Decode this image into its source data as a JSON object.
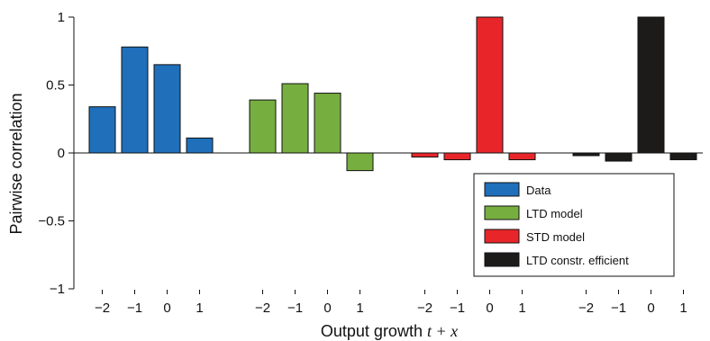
{
  "chart_data": {
    "type": "bar",
    "title": "",
    "xlabel": "Output growth t + x",
    "xlabel_plain": "Output growth ",
    "xlabel_math": "t + x",
    "ylabel": "Pairwise correlation",
    "ylim": [
      -1,
      1
    ],
    "yticks": [
      -1,
      -0.5,
      0,
      0.5,
      1
    ],
    "ytick_labels": [
      "−1",
      "−0.5",
      "0",
      "0.5",
      "1"
    ],
    "lags": [
      -2,
      -1,
      0,
      1
    ],
    "lag_labels": [
      "−2",
      "−1",
      "0",
      "1"
    ],
    "grid": false,
    "legend_position": "bottom-right",
    "series": [
      {
        "name": "Data",
        "color": "#1f6fba",
        "values": [
          0.34,
          0.78,
          0.65,
          0.11
        ]
      },
      {
        "name": "LTD model",
        "color": "#76ae40",
        "values": [
          0.39,
          0.51,
          0.44,
          -0.13
        ]
      },
      {
        "name": "STD model",
        "color": "#e8262a",
        "values": [
          -0.03,
          -0.05,
          1.0,
          -0.05
        ]
      },
      {
        "name": "LTD constr. efficient",
        "color": "#1d1a1a",
        "values": [
          -0.02,
          -0.06,
          1.0,
          -0.05
        ]
      }
    ]
  }
}
